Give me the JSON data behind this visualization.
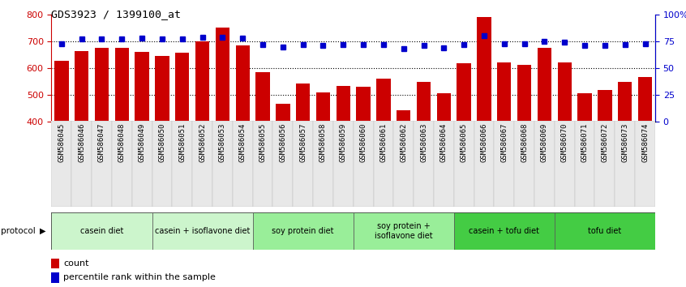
{
  "title": "GDS3923 / 1399100_at",
  "samples": [
    "GSM586045",
    "GSM586046",
    "GSM586047",
    "GSM586048",
    "GSM586049",
    "GSM586050",
    "GSM586051",
    "GSM586052",
    "GSM586053",
    "GSM586054",
    "GSM586055",
    "GSM586056",
    "GSM586057",
    "GSM586058",
    "GSM586059",
    "GSM586060",
    "GSM586061",
    "GSM586062",
    "GSM586063",
    "GSM586064",
    "GSM586065",
    "GSM586066",
    "GSM586067",
    "GSM586068",
    "GSM586069",
    "GSM586070",
    "GSM586071",
    "GSM586072",
    "GSM586073",
    "GSM586074"
  ],
  "counts": [
    627,
    664,
    676,
    675,
    659,
    645,
    657,
    700,
    752,
    684,
    585,
    468,
    542,
    510,
    533,
    530,
    560,
    443,
    550,
    508,
    617,
    790,
    622,
    611,
    675,
    620,
    508,
    519,
    549,
    568
  ],
  "percentile_ranks": [
    73,
    77,
    77,
    77,
    78,
    77,
    77,
    79,
    79,
    78,
    72,
    70,
    72,
    71,
    72,
    72,
    72,
    68,
    71,
    69,
    72,
    80,
    73,
    73,
    75,
    74,
    71,
    71,
    72,
    73
  ],
  "bar_color": "#cc0000",
  "percentile_color": "#0000cc",
  "ylim_left": [
    400,
    800
  ],
  "ylim_right": [
    0,
    100
  ],
  "yticks_left": [
    400,
    500,
    600,
    700,
    800
  ],
  "yticks_right": [
    0,
    25,
    50,
    75,
    100
  ],
  "ytick_labels_right": [
    "0",
    "25",
    "50",
    "75",
    "100%"
  ],
  "grid_lines": [
    500,
    600,
    700
  ],
  "protocols": [
    {
      "label": "casein diet",
      "start": 0,
      "end": 5,
      "color": "#ccf5cc"
    },
    {
      "label": "casein + isoflavone diet",
      "start": 5,
      "end": 10,
      "color": "#ccf5cc"
    },
    {
      "label": "soy protein diet",
      "start": 10,
      "end": 15,
      "color": "#99ee99"
    },
    {
      "label": "soy protein +\nisoflavone diet",
      "start": 15,
      "end": 20,
      "color": "#99ee99"
    },
    {
      "label": "casein + tofu diet",
      "start": 20,
      "end": 25,
      "color": "#44cc44"
    },
    {
      "label": "tofu diet",
      "start": 25,
      "end": 30,
      "color": "#44cc44"
    }
  ],
  "legend_count_color": "#cc0000",
  "legend_percentile_color": "#0000cc",
  "background_color": "#ffffff",
  "tick_label_color_left": "#cc0000",
  "tick_label_color_right": "#0000cc",
  "xticklabel_bg": "#e8e8e8"
}
